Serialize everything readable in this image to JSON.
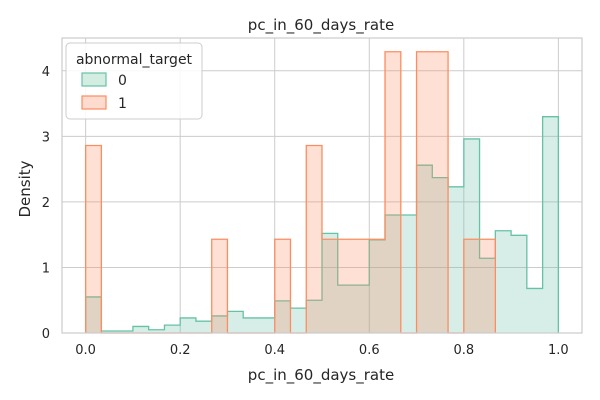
{
  "chart_data": {
    "type": "histogram",
    "title": "pc_in_60_days_rate",
    "xlabel": "pc_in_60_days_rate",
    "ylabel": "Density",
    "xlim": [
      -0.05,
      1.05
    ],
    "ylim": [
      0,
      4.5
    ],
    "xticks": [
      "0.0",
      "0.2",
      "0.4",
      "0.6",
      "0.8",
      "1.0"
    ],
    "yticks": [
      "0",
      "1",
      "2",
      "3",
      "4"
    ],
    "grid": true,
    "legend": {
      "title": "abnormal_target",
      "placement": "top-left",
      "entries": [
        "0",
        "1"
      ]
    },
    "series": [
      {
        "name": "0",
        "color": "#66c2a5",
        "fill": "#d4ede3",
        "edges": [
          0,
          0.0333,
          0.0667,
          0.1,
          0.1333,
          0.1667,
          0.2,
          0.2333,
          0.2667,
          0.3,
          0.3333,
          0.3667,
          0.4,
          0.4333,
          0.4667,
          0.5,
          0.5333,
          0.5667,
          0.6,
          0.6333,
          0.6667,
          0.7,
          0.7333,
          0.7667,
          0.8,
          0.8333,
          0.8667,
          0.9,
          0.9333,
          0.9667,
          1.0
        ],
        "values": [
          0.55,
          0.03,
          0.03,
          0.1,
          0.05,
          0.12,
          0.23,
          0.18,
          0.26,
          0.33,
          0.23,
          0.23,
          0.49,
          0.38,
          0.5,
          1.52,
          0.73,
          0.73,
          1.42,
          1.8,
          1.8,
          2.56,
          2.37,
          2.23,
          2.96,
          1.14,
          1.56,
          1.49,
          0.68,
          3.3
        ]
      },
      {
        "name": "1",
        "color": "#fc8d62",
        "fill": "#fddccf",
        "edges": [
          0,
          0.0333,
          0.0667,
          0.1,
          0.1333,
          0.1667,
          0.2,
          0.2333,
          0.2667,
          0.3,
          0.3333,
          0.3667,
          0.4,
          0.4333,
          0.4667,
          0.5,
          0.5333,
          0.5667,
          0.6,
          0.6333,
          0.6667,
          0.7,
          0.7333,
          0.7667,
          0.8,
          0.8333,
          0.8667
        ],
        "values": [
          2.86,
          0,
          0,
          0,
          0,
          0,
          0,
          0,
          1.43,
          0,
          0,
          0,
          1.43,
          0,
          2.86,
          1.43,
          1.43,
          1.43,
          1.43,
          4.29,
          0,
          4.29,
          4.29,
          0,
          1.43,
          1.43
        ]
      }
    ]
  }
}
